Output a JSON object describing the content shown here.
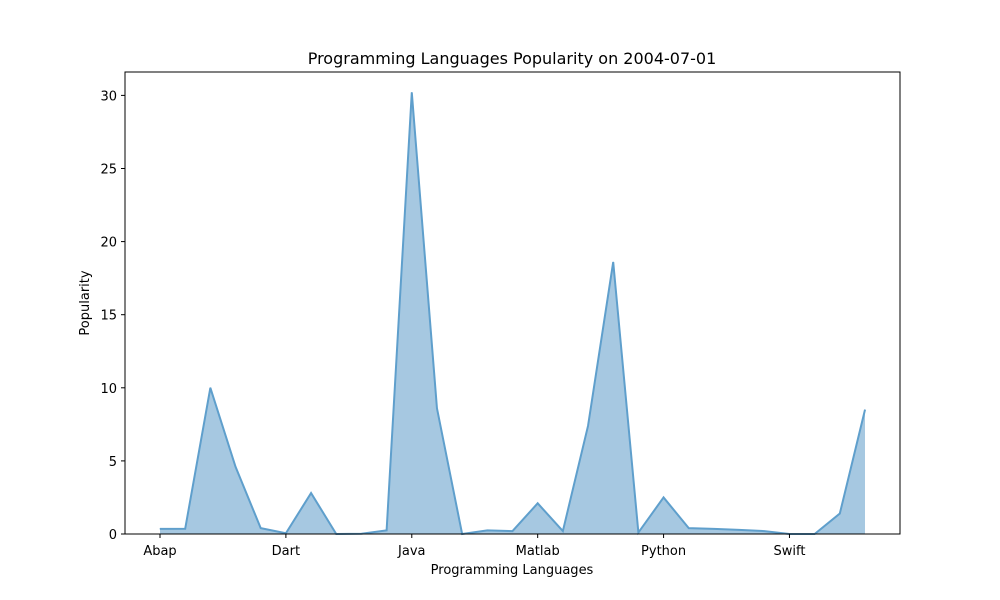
{
  "chart_data": {
    "type": "area",
    "title": "Programming Languages Popularity on 2004-07-01",
    "xlabel": "Programming Languages",
    "ylabel": "Popularity",
    "tick_labels": [
      "Abap",
      "Dart",
      "Java",
      "Matlab",
      "Python",
      "Swift"
    ],
    "tick_indices": [
      0,
      5,
      10,
      15,
      20,
      25
    ],
    "ylim": [
      0,
      31.6
    ],
    "yticks": [
      0,
      5,
      10,
      15,
      20,
      25,
      30
    ],
    "series": [
      {
        "values": [
          0.35,
          0.36,
          10.0,
          4.6,
          0.4,
          0.05,
          2.8,
          0.0,
          0.02,
          0.25,
          30.2,
          8.6,
          0.0,
          0.25,
          0.2,
          2.1,
          0.2,
          7.4,
          18.6,
          0.1,
          2.5,
          0.4,
          0.35,
          0.28,
          0.2,
          0.0,
          0.0,
          1.4,
          8.5
        ]
      }
    ],
    "colors": {
      "fill": "#a6c8e1",
      "line": "#5f9fcc"
    },
    "grid": false
  }
}
